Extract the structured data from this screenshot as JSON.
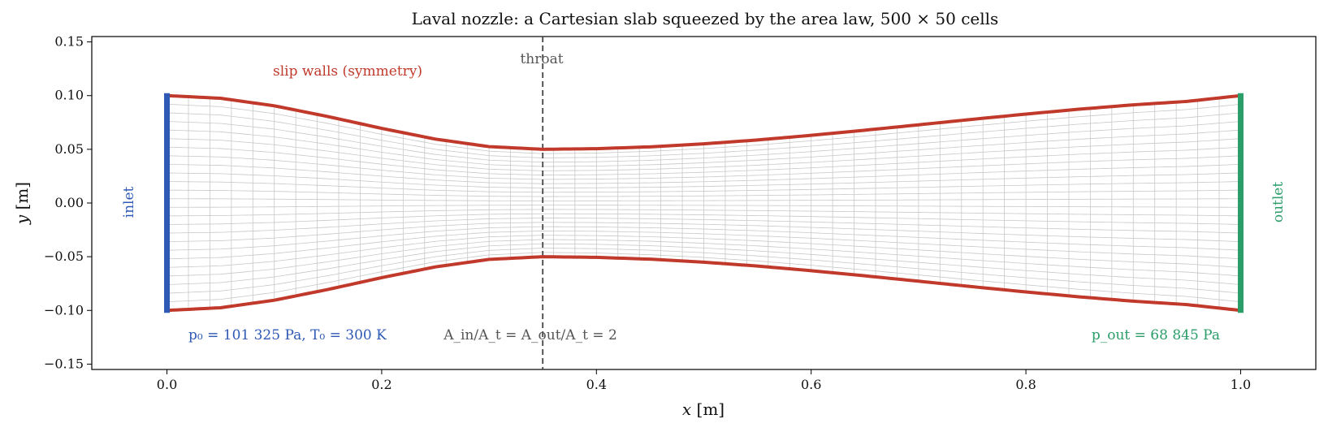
{
  "chart_data": {
    "type": "line",
    "title": "Laval nozzle: a Cartesian slab squeezed by the area law, 500 × 50 cells",
    "xlabel": "x [m]",
    "ylabel": "y [m]",
    "xlim": [
      -0.07,
      1.07
    ],
    "ylim": [
      -0.155,
      0.155
    ],
    "xticks": [
      0.0,
      0.2,
      0.4,
      0.6,
      0.8,
      1.0
    ],
    "xtick_labels": [
      "0.0",
      "0.2",
      "0.4",
      "0.6",
      "0.8",
      "1.0"
    ],
    "yticks": [
      0.15,
      0.1,
      0.05,
      0.0,
      -0.05,
      -0.1,
      -0.15
    ],
    "ytick_labels": [
      "0.15",
      "0.10",
      "0.05",
      "0.00",
      "−0.05",
      "−0.10",
      "−0.15"
    ],
    "grid": false,
    "throat_x": 0.35,
    "half_height_inlet": 0.1,
    "half_height_throat": 0.05,
    "half_height_outlet": 0.1,
    "wall_profile": {
      "x": [
        0.0,
        0.05,
        0.1,
        0.15,
        0.2,
        0.25,
        0.3,
        0.35,
        0.4,
        0.45,
        0.5,
        0.55,
        0.6,
        0.65,
        0.7,
        0.75,
        0.8,
        0.85,
        0.9,
        0.95,
        1.0
      ],
      "y_upper": [
        0.1,
        0.0975,
        0.0905,
        0.0805,
        0.0695,
        0.0595,
        0.0525,
        0.05,
        0.0506,
        0.0523,
        0.0551,
        0.0587,
        0.063,
        0.0678,
        0.0728,
        0.0779,
        0.0828,
        0.0874,
        0.0914,
        0.0946,
        0.1
      ]
    },
    "series": [
      {
        "name": "slip walls (symmetry)",
        "color": "#c0392b"
      },
      {
        "name": "inlet",
        "color": "#2e59b5"
      },
      {
        "name": "outlet",
        "color": "#2a9d68"
      }
    ],
    "annotations": {
      "throat": "throat",
      "slip_walls": "slip walls (symmetry)",
      "inlet": "inlet",
      "outlet": "outlet",
      "inlet_conditions": "p₀ = 101 325 Pa, T₀ = 300 K",
      "area_ratio": "A_in/A_t = A_out/A_t = 2",
      "outlet_pressure": "p_out = 68 845 Pa"
    },
    "colors": {
      "wall": "#c0392b",
      "inlet": "#2e59b5",
      "outlet": "#2a9d68",
      "mesh": "#c8c8c8",
      "throat_line": "#444444",
      "annotation_gray": "#555555"
    }
  }
}
